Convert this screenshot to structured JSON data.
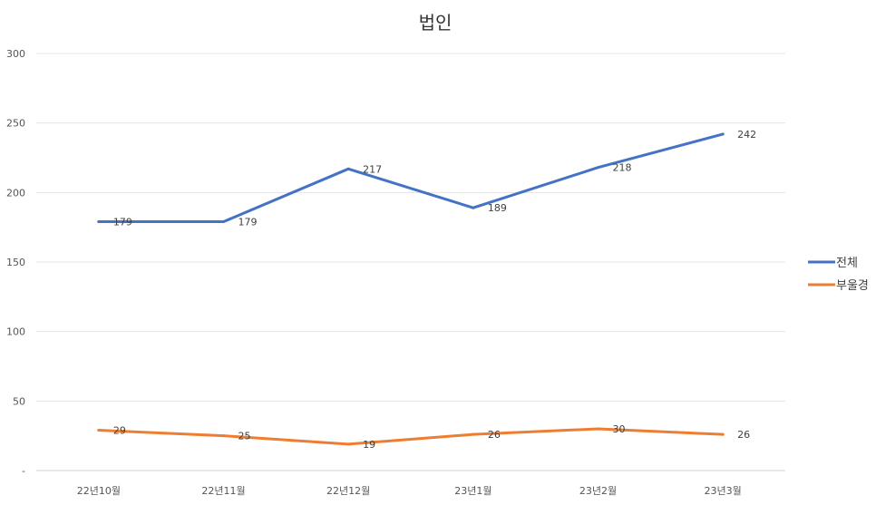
{
  "chart_data": {
    "type": "line",
    "title": "법인",
    "categories": [
      "22년10월",
      "22년11월",
      "22년12월",
      "23년1월",
      "23년2월",
      "23년3월"
    ],
    "y_tick_labels": [
      "-",
      "50",
      "100",
      "150",
      "200",
      "250",
      "300"
    ],
    "y_ticks": [
      0,
      50,
      100,
      150,
      200,
      250,
      300
    ],
    "ylim": [
      0,
      300
    ],
    "grid": true,
    "legend_position": "right",
    "series": [
      {
        "name": "전체",
        "color": "#4472C4",
        "values": [
          179,
          179,
          217,
          189,
          218,
          242
        ]
      },
      {
        "name": "부울경",
        "color": "#ED7D31",
        "values": [
          29,
          25,
          19,
          26,
          30,
          26
        ]
      }
    ]
  }
}
